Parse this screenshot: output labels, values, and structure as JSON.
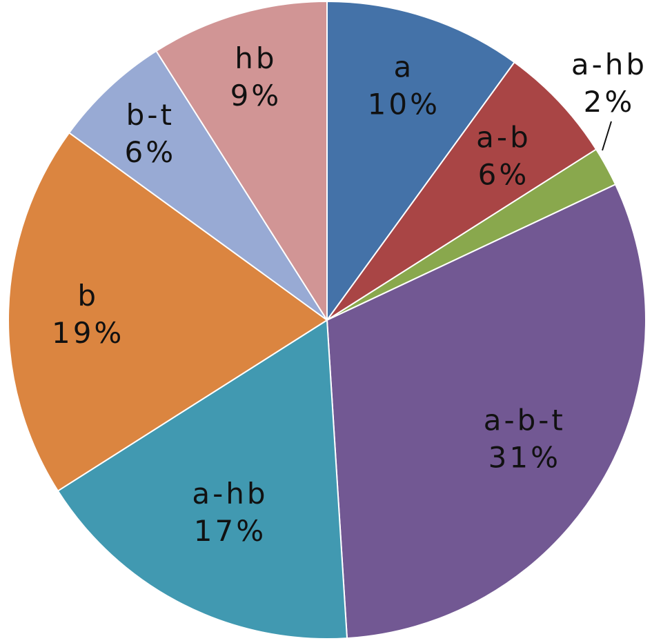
{
  "chart_data": {
    "type": "pie",
    "slices": [
      {
        "label": "a",
        "percent_label": "10%",
        "value": 10,
        "color": "#4472a8"
      },
      {
        "label": "a-b",
        "percent_label": "6%",
        "value": 6,
        "color": "#a94545"
      },
      {
        "label": "a-hb",
        "percent_label": "2%",
        "value": 2,
        "color": "#89a84d"
      },
      {
        "label": "a-b-t",
        "percent_label": "31%",
        "value": 31,
        "color": "#725893"
      },
      {
        "label": "a-hb",
        "percent_label": "17%",
        "value": 17,
        "color": "#4199b1"
      },
      {
        "label": "b",
        "percent_label": "19%",
        "value": 19,
        "color": "#db8540"
      },
      {
        "label": "b-t",
        "percent_label": "6%",
        "value": 6,
        "color": "#98aad4"
      },
      {
        "label": "hb",
        "percent_label": "9%",
        "value": 9,
        "color": "#d19595"
      }
    ],
    "start_angle": "12 o'clock",
    "direction": "clockwise",
    "legend": "none",
    "labels": "on slices, with leader line for small slice"
  }
}
